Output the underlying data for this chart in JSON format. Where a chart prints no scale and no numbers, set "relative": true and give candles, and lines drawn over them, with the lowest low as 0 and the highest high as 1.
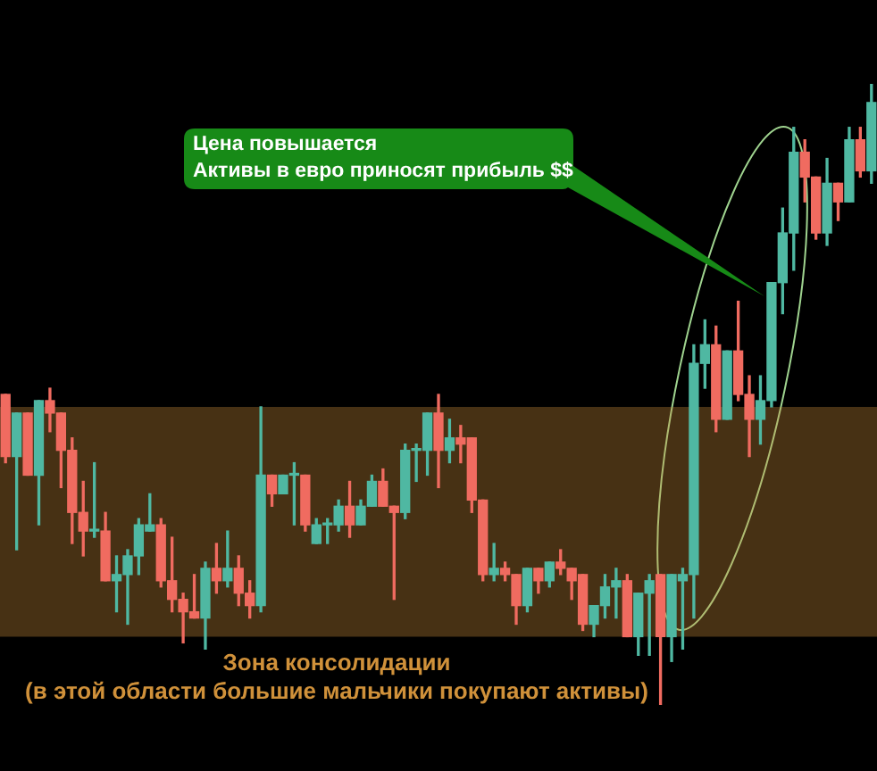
{
  "chart_data": {
    "type": "candlestick",
    "relative": true,
    "tick_labels": false,
    "categories": [
      null,
      null,
      null,
      null,
      null,
      null,
      null,
      null,
      null,
      null,
      null,
      null,
      null,
      null,
      null,
      null,
      null,
      null,
      null,
      null,
      null,
      null,
      null,
      null,
      null,
      null,
      null,
      null,
      null,
      null,
      null,
      null,
      null,
      null,
      null,
      null,
      null,
      null,
      null,
      null,
      null,
      null,
      null,
      null,
      null,
      null,
      null,
      null,
      null,
      null,
      null,
      null,
      null,
      null,
      null,
      null,
      null,
      null,
      null,
      null,
      null,
      null,
      null,
      null,
      null,
      null,
      null,
      null,
      null,
      null,
      null,
      null,
      null,
      null,
      null,
      null,
      null,
      null,
      null
    ],
    "ohlc": [
      [
        0.5,
        0.5,
        0.39,
        0.4
      ],
      [
        0.4,
        0.47,
        0.25,
        0.47
      ],
      [
        0.47,
        0.47,
        0.37,
        0.37
      ],
      [
        0.37,
        0.49,
        0.29,
        0.49
      ],
      [
        0.49,
        0.51,
        0.44,
        0.47
      ],
      [
        0.47,
        0.47,
        0.35,
        0.41
      ],
      [
        0.41,
        0.43,
        0.26,
        0.31
      ],
      [
        0.31,
        0.36,
        0.24,
        0.28
      ],
      [
        0.28,
        0.39,
        0.27,
        0.28
      ],
      [
        0.28,
        0.31,
        0.2,
        0.2
      ],
      [
        0.2,
        0.24,
        0.15,
        0.21
      ],
      [
        0.21,
        0.25,
        0.13,
        0.24
      ],
      [
        0.24,
        0.3,
        0.21,
        0.29
      ],
      [
        0.28,
        0.34,
        0.28,
        0.29
      ],
      [
        0.29,
        0.3,
        0.19,
        0.2
      ],
      [
        0.2,
        0.27,
        0.15,
        0.17
      ],
      [
        0.17,
        0.18,
        0.1,
        0.15
      ],
      [
        0.15,
        0.21,
        0.14,
        0.14
      ],
      [
        0.14,
        0.23,
        0.09,
        0.22
      ],
      [
        0.22,
        0.26,
        0.18,
        0.2
      ],
      [
        0.2,
        0.28,
        0.19,
        0.22
      ],
      [
        0.22,
        0.24,
        0.16,
        0.18
      ],
      [
        0.18,
        0.2,
        0.14,
        0.16
      ],
      [
        0.16,
        0.48,
        0.15,
        0.37
      ],
      [
        0.37,
        0.37,
        0.32,
        0.34
      ],
      [
        0.34,
        0.37,
        0.34,
        0.37
      ],
      [
        0.37,
        0.39,
        0.29,
        0.37
      ],
      [
        0.37,
        0.37,
        0.28,
        0.29
      ],
      [
        0.26,
        0.3,
        0.26,
        0.29
      ],
      [
        0.29,
        0.3,
        0.26,
        0.29
      ],
      [
        0.29,
        0.33,
        0.28,
        0.32
      ],
      [
        0.32,
        0.36,
        0.27,
        0.29
      ],
      [
        0.29,
        0.33,
        0.29,
        0.32
      ],
      [
        0.32,
        0.37,
        0.32,
        0.36
      ],
      [
        0.36,
        0.38,
        0.32,
        0.32
      ],
      [
        0.32,
        0.32,
        0.17,
        0.31
      ],
      [
        0.31,
        0.42,
        0.3,
        0.41
      ],
      [
        0.41,
        0.42,
        0.36,
        0.41
      ],
      [
        0.41,
        0.47,
        0.37,
        0.47
      ],
      [
        0.47,
        0.5,
        0.35,
        0.41
      ],
      [
        0.41,
        0.46,
        0.39,
        0.43
      ],
      [
        0.43,
        0.45,
        0.39,
        0.42
      ],
      [
        0.43,
        0.43,
        0.31,
        0.33
      ],
      [
        0.33,
        0.33,
        0.2,
        0.21
      ],
      [
        0.21,
        0.26,
        0.2,
        0.22
      ],
      [
        0.22,
        0.23,
        0.2,
        0.21
      ],
      [
        0.21,
        0.21,
        0.13,
        0.16
      ],
      [
        0.16,
        0.22,
        0.15,
        0.22
      ],
      [
        0.22,
        0.22,
        0.18,
        0.2
      ],
      [
        0.2,
        0.23,
        0.19,
        0.23
      ],
      [
        0.23,
        0.25,
        0.21,
        0.22
      ],
      [
        0.22,
        0.22,
        0.17,
        0.2
      ],
      [
        0.21,
        0.21,
        0.12,
        0.13
      ],
      [
        0.13,
        0.16,
        0.11,
        0.16
      ],
      [
        0.16,
        0.21,
        0.14,
        0.19
      ],
      [
        0.19,
        0.22,
        0.14,
        0.2
      ],
      [
        0.2,
        0.21,
        0.11,
        0.11
      ],
      [
        0.11,
        0.18,
        0.08,
        0.18
      ],
      [
        0.18,
        0.21,
        0.08,
        0.2
      ],
      [
        0.21,
        0.21,
        0.0,
        0.11
      ],
      [
        0.11,
        0.21,
        0.07,
        0.21
      ],
      [
        0.2,
        0.22,
        0.09,
        0.21
      ],
      [
        0.21,
        0.58,
        0.14,
        0.55
      ],
      [
        0.55,
        0.62,
        0.51,
        0.58
      ],
      [
        0.58,
        0.61,
        0.44,
        0.46
      ],
      [
        0.46,
        0.57,
        0.46,
        0.57
      ],
      [
        0.57,
        0.65,
        0.49,
        0.5
      ],
      [
        0.5,
        0.53,
        0.4,
        0.46
      ],
      [
        0.46,
        0.53,
        0.42,
        0.49
      ],
      [
        0.49,
        0.68,
        0.48,
        0.68
      ],
      [
        0.68,
        0.8,
        0.63,
        0.76
      ],
      [
        0.76,
        0.93,
        0.7,
        0.89
      ],
      [
        0.89,
        0.91,
        0.81,
        0.85
      ],
      [
        0.85,
        0.85,
        0.75,
        0.76
      ],
      [
        0.76,
        0.88,
        0.74,
        0.84
      ],
      [
        0.84,
        0.84,
        0.78,
        0.81
      ],
      [
        0.81,
        0.93,
        0.81,
        0.91
      ],
      [
        0.91,
        0.93,
        0.85,
        0.86
      ],
      [
        0.86,
        1.0,
        0.84,
        0.97
      ]
    ],
    "colors": [
      "#f06b60",
      "#4fb8a2",
      "#f06b60",
      "#4fb8a2",
      "#f06b60",
      "#f06b60",
      "#f06b60",
      "#f06b60",
      "#4fb8a2",
      "#f06b60",
      "#4fb8a2",
      "#4fb8a2",
      "#4fb8a2",
      "#4fb8a2",
      "#f06b60",
      "#f06b60",
      "#f06b60",
      "#f06b60",
      "#4fb8a2",
      "#f06b60",
      "#4fb8a2",
      "#f06b60",
      "#f06b60",
      "#4fb8a2",
      "#f06b60",
      "#4fb8a2",
      "#4fb8a2",
      "#f06b60",
      "#4fb8a2",
      "#4fb8a2",
      "#4fb8a2",
      "#f06b60",
      "#4fb8a2",
      "#4fb8a2",
      "#f06b60",
      "#f06b60",
      "#4fb8a2",
      "#4fb8a2",
      "#4fb8a2",
      "#f06b60",
      "#4fb8a2",
      "#f06b60",
      "#f06b60",
      "#f06b60",
      "#4fb8a2",
      "#f06b60",
      "#f06b60",
      "#4fb8a2",
      "#f06b60",
      "#4fb8a2",
      "#f06b60",
      "#f06b60",
      "#f06b60",
      "#4fb8a2",
      "#4fb8a2",
      "#4fb8a2",
      "#f06b60",
      "#4fb8a2",
      "#4fb8a2",
      "#f06b60",
      "#4fb8a2",
      "#4fb8a2",
      "#4fb8a2",
      "#4fb8a2",
      "#f06b60",
      "#4fb8a2",
      "#f06b60",
      "#f06b60",
      "#4fb8a2",
      "#4fb8a2",
      "#4fb8a2",
      "#4fb8a2",
      "#f06b60",
      "#f06b60",
      "#4fb8a2",
      "#f06b60",
      "#4fb8a2",
      "#f06b60",
      "#4fb8a2"
    ],
    "bands": [
      {
        "axis": "y",
        "from": 0.11,
        "to": 0.48,
        "label": "Зона консолидации\n(в этой области большие мальчики покупают активы)",
        "color": "#d0913a"
      }
    ],
    "annotations": [
      "Цена повышается\nАктивы в евро приносят прибыль $$"
    ]
  }
}
